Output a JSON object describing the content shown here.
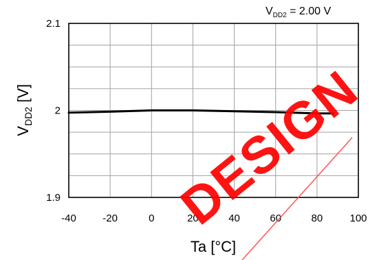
{
  "chart_data": {
    "type": "line",
    "title": "",
    "xlabel": "Ta [°C]",
    "ylabel": {
      "main": "V",
      "sub": "DD2",
      "unit": " [V]"
    },
    "xlim": [
      -40,
      100
    ],
    "ylim": [
      1.9,
      2.1
    ],
    "x_ticks": [
      "-40",
      "-20",
      "0",
      "20",
      "40",
      "60",
      "80",
      "100"
    ],
    "y_ticks": [
      "1.9",
      "2",
      "2.1"
    ],
    "minor_y_step": 0.025,
    "grid": true,
    "line_color": "#000000",
    "grid_color": "#a0a0a0",
    "series": [
      {
        "x": [
          -40,
          -20,
          0,
          20,
          40,
          60,
          80,
          88
        ],
        "y": [
          1.9975,
          1.9985,
          2.0,
          2.0,
          1.999,
          1.998,
          1.9965,
          1.9965
        ]
      }
    ],
    "annotation": {
      "main": "V",
      "sub": "DD2",
      "value": " = 2.00 V"
    }
  },
  "watermark": {
    "text": "DESIGN",
    "color": "#ff0000"
  }
}
